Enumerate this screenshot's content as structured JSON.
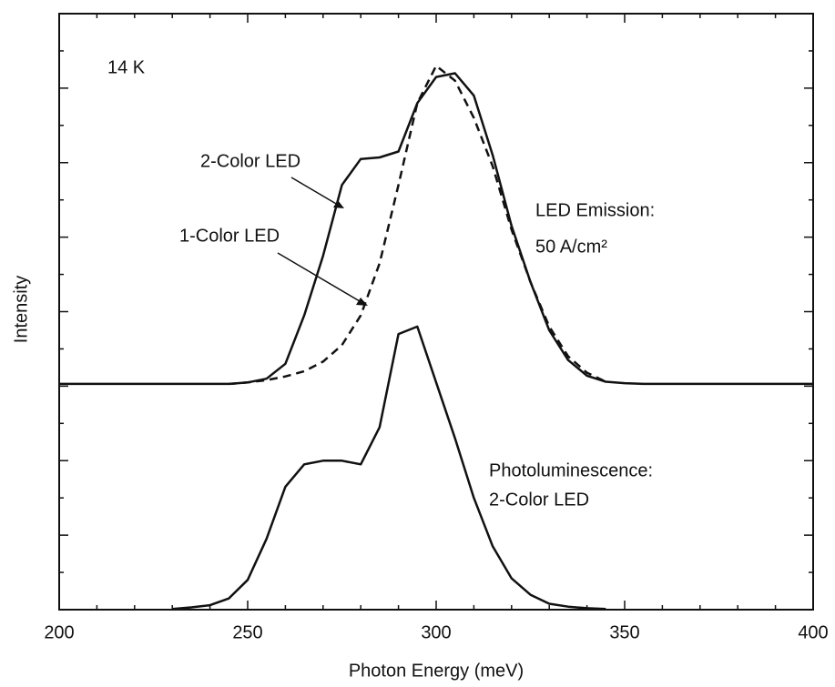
{
  "chart_data": {
    "type": "line",
    "xlabel": "Photon Energy (meV)",
    "ylabel": "Intensity",
    "x": [
      200,
      205,
      210,
      215,
      220,
      225,
      230,
      235,
      240,
      245,
      250,
      255,
      260,
      265,
      270,
      275,
      280,
      285,
      290,
      295,
      300,
      305,
      310,
      315,
      320,
      325,
      330,
      335,
      340,
      345,
      350,
      355,
      360,
      365,
      370,
      375,
      380,
      385,
      390,
      395,
      400
    ],
    "series": [
      {
        "color": "#111111",
        "style": "solid",
        "values": [
          3.03,
          3.03,
          3.03,
          3.03,
          3.03,
          3.03,
          3.03,
          3.03,
          3.03,
          3.03,
          3.05,
          3.1,
          3.3,
          3.95,
          4.75,
          5.7,
          6.05,
          6.07,
          6.15,
          6.8,
          7.15,
          7.2,
          6.9,
          6.1,
          5.15,
          4.4,
          3.75,
          3.35,
          3.14,
          3.06,
          3.04,
          3.03,
          3.03,
          3.03,
          3.03,
          3.03,
          3.03,
          3.03,
          3.03,
          3.03,
          3.03
        ]
      },
      {
        "color": "#111111",
        "style": "dashed",
        "values": [
          null,
          null,
          null,
          null,
          null,
          null,
          null,
          null,
          null,
          3.03,
          3.05,
          3.08,
          3.13,
          3.2,
          3.33,
          3.55,
          3.95,
          4.65,
          5.7,
          6.8,
          7.3,
          7.1,
          6.6,
          5.95,
          5.1,
          4.4,
          3.8,
          3.4,
          3.18,
          3.06,
          null,
          null,
          null,
          null,
          null,
          null,
          null,
          null,
          null,
          null,
          null
        ]
      },
      {
        "color": "#111111",
        "style": "solid",
        "values": [
          null,
          null,
          null,
          null,
          null,
          null,
          0.01,
          0.03,
          0.06,
          0.15,
          0.4,
          0.95,
          1.65,
          1.95,
          2.0,
          2.0,
          1.95,
          2.45,
          3.7,
          3.8,
          3.05,
          2.3,
          1.5,
          0.85,
          0.42,
          0.2,
          0.08,
          0.04,
          0.02,
          0.01,
          null,
          null,
          null,
          null,
          null,
          null,
          null,
          null,
          null,
          null,
          null
        ]
      }
    ],
    "xlim": [
      200,
      400
    ],
    "xticks": [
      200,
      250,
      300,
      350,
      400
    ],
    "ylim": [
      0,
      8
    ],
    "yticks": [
      0,
      1,
      2,
      3,
      4,
      5,
      6,
      7,
      8
    ],
    "annotations": [
      "14 K",
      "2-Color LED",
      "1-Color LED",
      "LED Emission:",
      "50 A/cm²",
      "Photoluminescence:",
      "2-Color LED"
    ]
  }
}
